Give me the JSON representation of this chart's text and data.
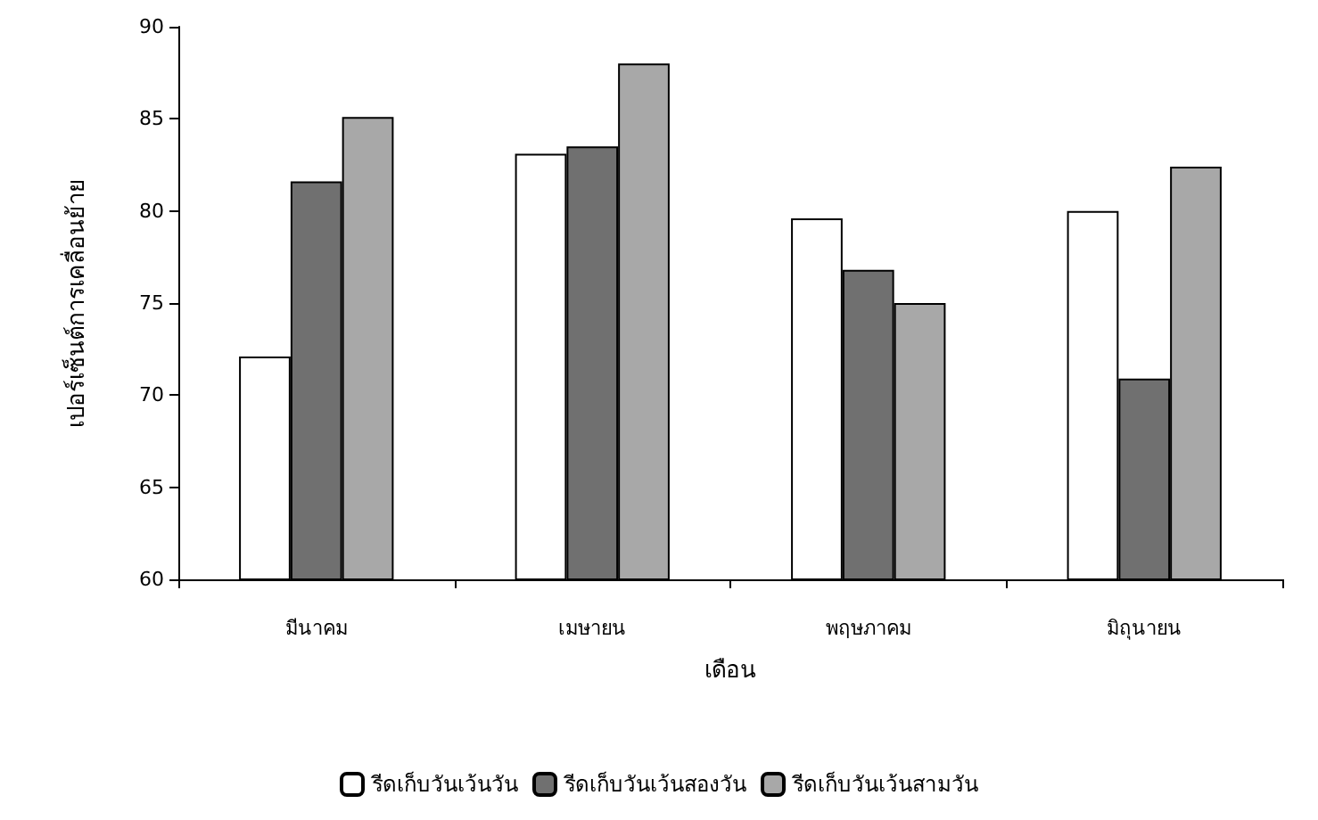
{
  "chart_data": {
    "type": "bar",
    "xlabel": "เดือน",
    "ylabel": "เปอร์เซ็นต์การเคลื่อนย้าย",
    "categories": [
      "มีนาคม",
      "เมษายน",
      "พฤษภาคม",
      "มิถุนายน"
    ],
    "series": [
      {
        "name": "รีดเก็บวันเว้นวัน",
        "color": "#ffffff",
        "values": [
          72.1,
          83.1,
          79.6,
          80.0
        ]
      },
      {
        "name": "รีดเก็บวันเว้นสองวัน",
        "color": "#707070",
        "values": [
          81.6,
          83.5,
          76.8,
          70.9
        ]
      },
      {
        "name": "รีดเก็บวันเว้นสามวัน",
        "color": "#a8a8a8",
        "values": [
          85.1,
          88.0,
          75.0,
          82.4
        ]
      }
    ],
    "ylim": [
      60,
      90
    ],
    "yticks": [
      60,
      65,
      70,
      75,
      80,
      85,
      90
    ],
    "grid": false,
    "legend": "bottom"
  }
}
